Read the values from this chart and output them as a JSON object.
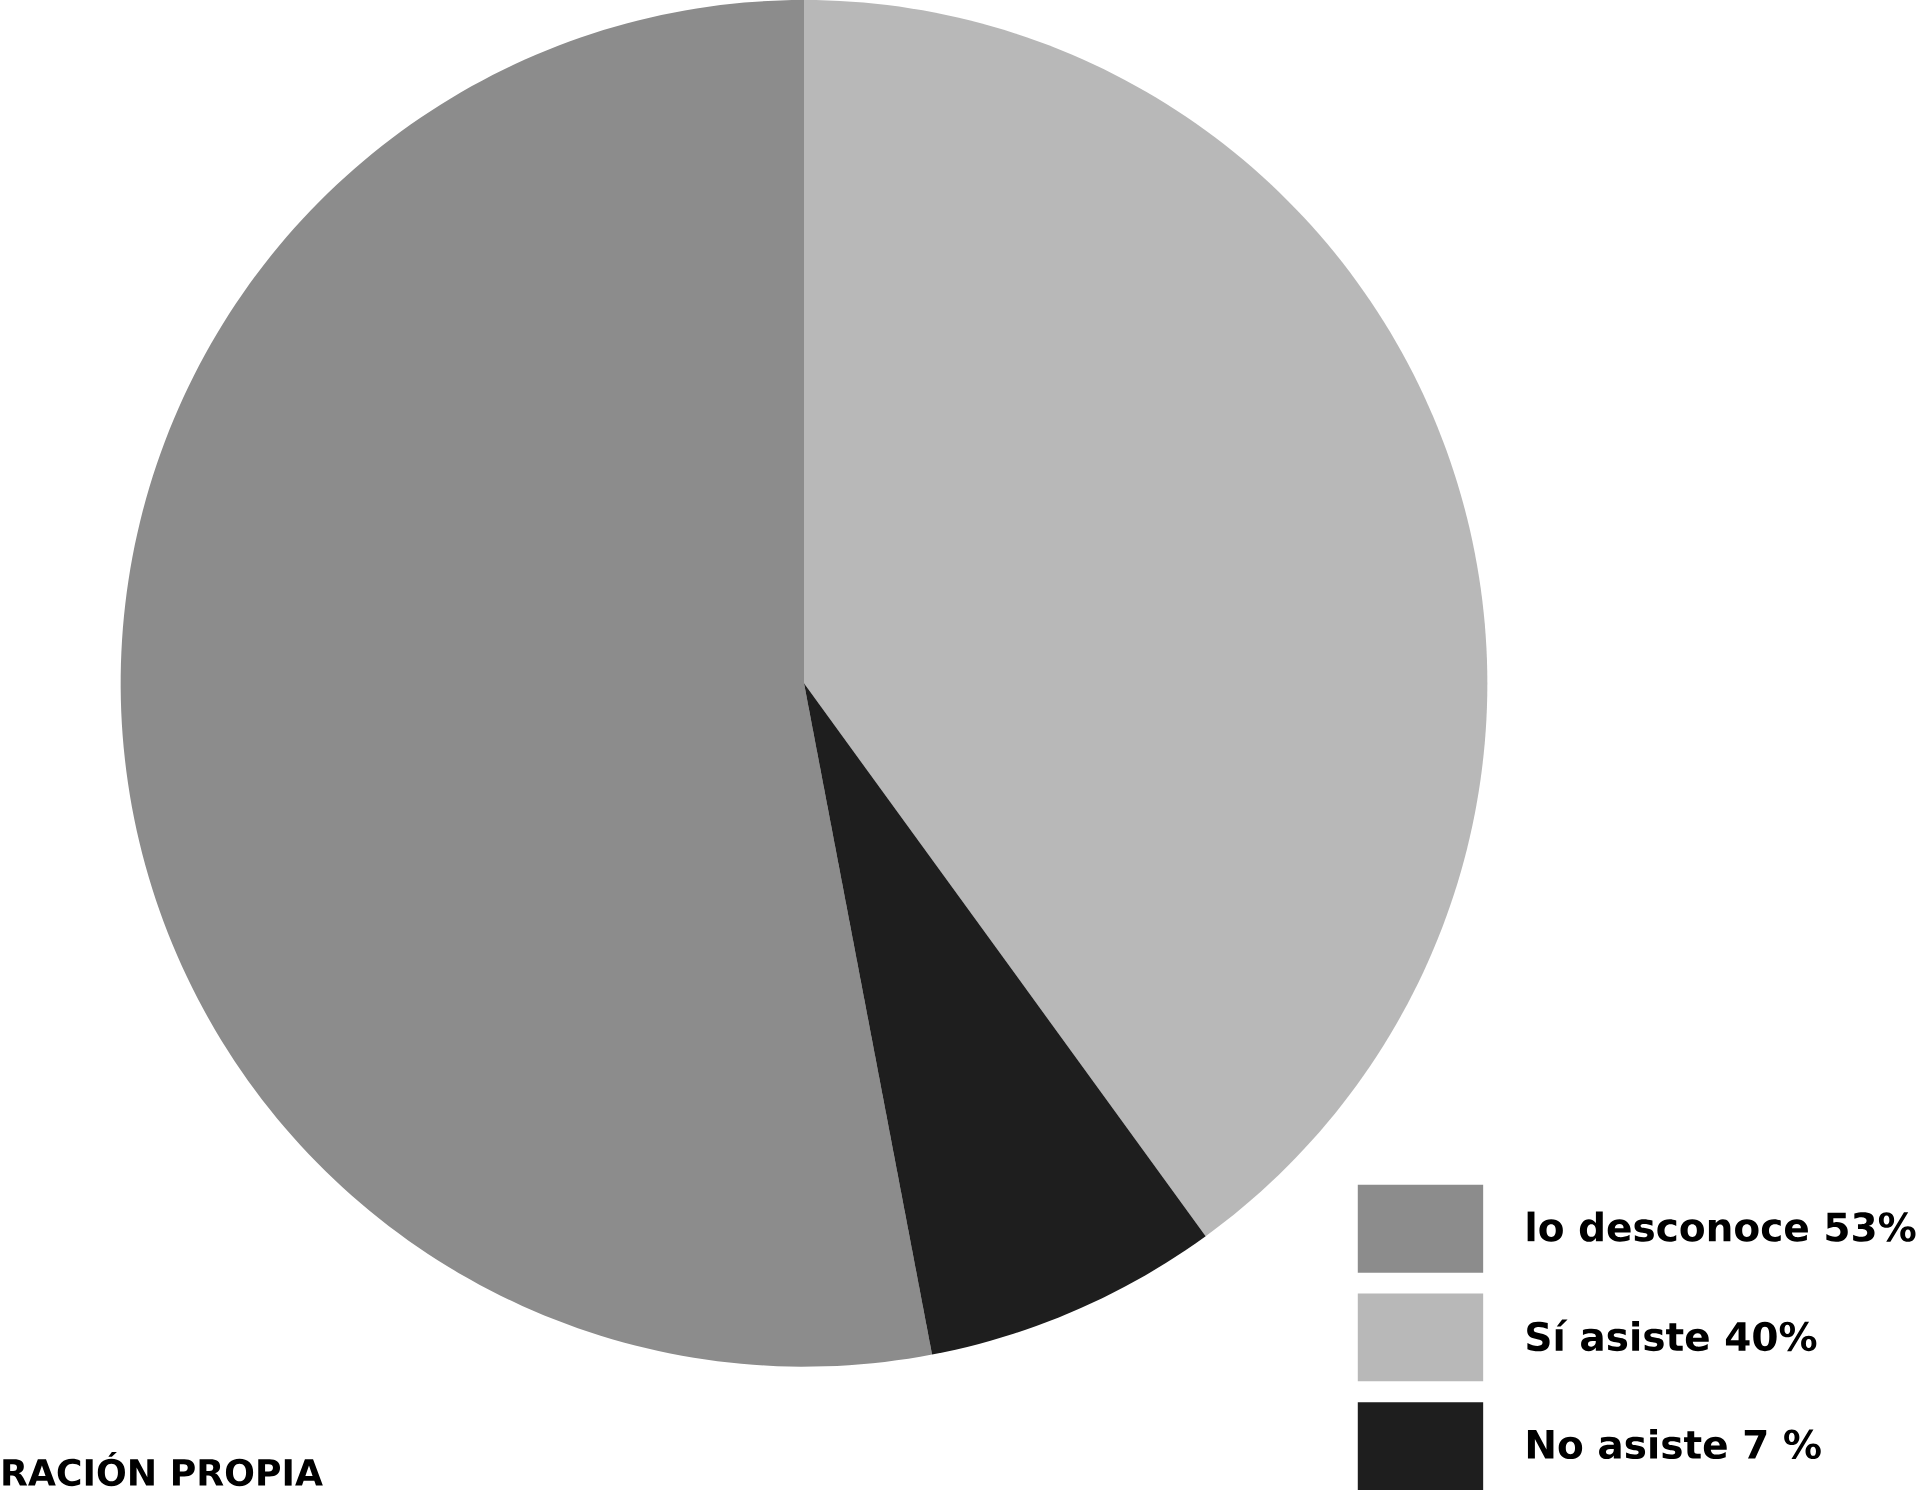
{
  "chart_data": {
    "type": "pie",
    "categories": [
      "lo desconoce 53%",
      "Sí asiste 40%",
      "No asiste 7 %"
    ],
    "values": [
      53,
      40,
      7
    ],
    "colors": [
      "#8c8c8c",
      "#b8b8b8",
      "#1e1e1e"
    ],
    "legend": "bottom right",
    "annotations": [
      "RACIÓN PROPIA"
    ]
  }
}
